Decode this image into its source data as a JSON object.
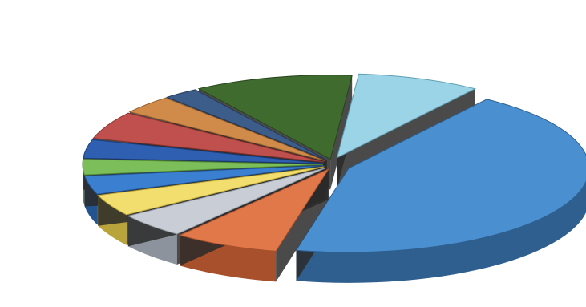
{
  "chart_data": {
    "type": "pie",
    "variant": "3d-exploded",
    "title": "",
    "labels_legible": false,
    "slices": [
      {
        "value": 37.0,
        "color": "#4a90d0",
        "side": "#2e5f8f"
      },
      {
        "value": 6.0,
        "color": "#e0784a",
        "side": "#a8502c"
      },
      {
        "value": 4.0,
        "color": "#c8cdd6",
        "side": "#8d939c"
      },
      {
        "value": 3.5,
        "color": "#f2de6e",
        "side": "#b8a43a"
      },
      {
        "value": 3.0,
        "color": "#3a7fd0",
        "side": "#24548f"
      },
      {
        "value": 2.5,
        "color": "#7cbf5a",
        "side": "#4f8a36"
      },
      {
        "value": 3.0,
        "color": "#2f5fb0",
        "side": "#1c3d78"
      },
      {
        "value": 4.5,
        "color": "#c0504d",
        "side": "#8a3330"
      },
      {
        "value": 3.0,
        "color": "#d08a4a",
        "side": "#96602c"
      },
      {
        "value": 2.0,
        "color": "#3c5d8a",
        "side": "#25395a"
      },
      {
        "value": 9.0,
        "color": "#3f6b2f",
        "side": "#27441c"
      },
      {
        "value": 7.0,
        "color": "#9ad4e6",
        "side": "#5f9fb3"
      }
    ]
  }
}
